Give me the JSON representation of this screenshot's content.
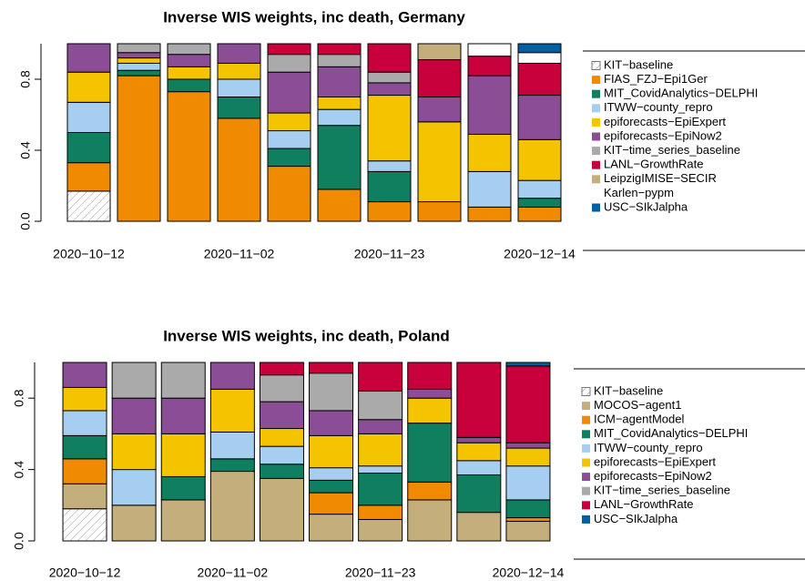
{
  "chart_data": [
    {
      "type": "bar",
      "stacked": true,
      "title": "Inverse WIS weights, inc death, Germany",
      "categories": [
        "2020−10−12",
        null,
        null,
        "2020−11−02",
        null,
        null,
        "2020−11−23",
        null,
        null,
        "2020−12−14"
      ],
      "ylim": [
        0,
        1
      ],
      "yticks": [
        {
          "value": 0,
          "label": "0.0"
        },
        {
          "value": 0.4,
          "label": "0.4"
        },
        {
          "value": 0.8,
          "label": "0.8"
        }
      ],
      "legend": "right",
      "series": [
        {
          "name": "KIT−baseline",
          "color": "#999999",
          "pattern": "hatch",
          "values": [
            0.17,
            0,
            0,
            0,
            0,
            0,
            0,
            0,
            0,
            0
          ]
        },
        {
          "name": "FIAS_FZJ−Epi1Ger",
          "color": "#f08a00",
          "values": [
            0.16,
            0.82,
            0.73,
            0.58,
            0.31,
            0.18,
            0.11,
            0.11,
            0.08,
            0.08
          ]
        },
        {
          "name": "MIT_CovidAnalytics−DELPHI",
          "color": "#0f7f5f",
          "values": [
            0.17,
            0.03,
            0.07,
            0.12,
            0.1,
            0.36,
            0.17,
            0,
            0,
            0.05
          ]
        },
        {
          "name": "ITWW−county_repro",
          "color": "#a6cef0",
          "values": [
            0.17,
            0.04,
            0,
            0.1,
            0.1,
            0.09,
            0.06,
            0,
            0.2,
            0.1
          ]
        },
        {
          "name": "epiforecasts−EpiExpert",
          "color": "#f4c400",
          "values": [
            0.17,
            0.03,
            0.07,
            0.09,
            0.1,
            0.07,
            0.37,
            0.45,
            0.21,
            0.23
          ]
        },
        {
          "name": "epiforecasts−EpiNow2",
          "color": "#8a4d96",
          "values": [
            0.16,
            0.03,
            0.07,
            0.11,
            0.23,
            0.17,
            0.07,
            0.14,
            0.33,
            0.25
          ]
        },
        {
          "name": "KIT−time_series_baseline",
          "color": "#aaaaaa",
          "values": [
            0,
            0.05,
            0.06,
            0,
            0.1,
            0.07,
            0.06,
            0,
            0,
            0
          ]
        },
        {
          "name": "LANL−GrowthRate",
          "color": "#c8003c",
          "values": [
            0,
            0,
            0,
            0,
            0.06,
            0.06,
            0.16,
            0.21,
            0.11,
            0.18
          ]
        },
        {
          "name": "LeipzigIMISE−SECIR",
          "color": "#c4ae7c",
          "values": [
            0,
            0,
            0,
            0,
            0,
            0,
            0,
            0.09,
            0,
            0
          ]
        },
        {
          "name": "Karlen−pypm",
          "color": "#ffffff",
          "values": [
            0,
            0,
            0,
            0,
            0,
            0,
            0,
            0,
            0.07,
            0.06
          ]
        },
        {
          "name": "USC−SIkJalpha",
          "color": "#0060a0",
          "values": [
            0,
            0,
            0,
            0,
            0,
            0,
            0,
            0,
            0,
            0.05
          ]
        }
      ]
    },
    {
      "type": "bar",
      "stacked": true,
      "title": "Inverse WIS weights, inc death, Poland",
      "categories": [
        "2020−10−12",
        null,
        null,
        "2020−11−02",
        null,
        null,
        "2020−11−23",
        null,
        null,
        "2020−12−14"
      ],
      "ylim": [
        0,
        1
      ],
      "yticks": [
        {
          "value": 0,
          "label": "0.0"
        },
        {
          "value": 0.4,
          "label": "0.4"
        },
        {
          "value": 0.8,
          "label": "0.8"
        }
      ],
      "legend": "right",
      "series": [
        {
          "name": "KIT−baseline",
          "color": "#999999",
          "pattern": "hatch",
          "values": [
            0.18,
            0,
            0,
            0,
            0,
            0,
            0,
            0,
            0,
            0
          ]
        },
        {
          "name": "MOCOS−agent1",
          "color": "#c4ae7c",
          "values": [
            0.14,
            0.2,
            0.23,
            0.39,
            0.35,
            0.15,
            0.12,
            0.23,
            0.16,
            0.11
          ]
        },
        {
          "name": "ICM−agentModel",
          "color": "#f08a00",
          "values": [
            0.14,
            0,
            0,
            0,
            0,
            0.12,
            0.08,
            0.1,
            0,
            0.02
          ]
        },
        {
          "name": "MIT_CovidAnalytics−DELPHI",
          "color": "#0f7f5f",
          "values": [
            0.13,
            0,
            0.13,
            0.07,
            0.08,
            0.07,
            0.18,
            0.33,
            0.21,
            0.1
          ]
        },
        {
          "name": "ITWW−county_repro",
          "color": "#a6cef0",
          "values": [
            0.14,
            0.2,
            0,
            0.15,
            0.1,
            0.07,
            0.04,
            0,
            0.08,
            0.19
          ]
        },
        {
          "name": "epiforecasts−EpiExpert",
          "color": "#f4c400",
          "values": [
            0.13,
            0.2,
            0.24,
            0.24,
            0.1,
            0.18,
            0.18,
            0.14,
            0.1,
            0.1
          ]
        },
        {
          "name": "epiforecasts−EpiNow2",
          "color": "#8a4d96",
          "values": [
            0.14,
            0.2,
            0.2,
            0.15,
            0.15,
            0.14,
            0.08,
            0.05,
            0.03,
            0.03
          ]
        },
        {
          "name": "KIT−time_series_baseline",
          "color": "#aaaaaa",
          "values": [
            0,
            0.2,
            0.2,
            0,
            0.15,
            0.21,
            0.16,
            0,
            0,
            0
          ]
        },
        {
          "name": "LANL−GrowthRate",
          "color": "#c8003c",
          "values": [
            0,
            0,
            0,
            0,
            0.07,
            0.06,
            0.16,
            0.15,
            0.42,
            0.43
          ]
        },
        {
          "name": "USC−SIkJalpha",
          "color": "#0060a0",
          "values": [
            0,
            0,
            0,
            0,
            0,
            0,
            0,
            0,
            0,
            0.02
          ]
        }
      ]
    }
  ]
}
